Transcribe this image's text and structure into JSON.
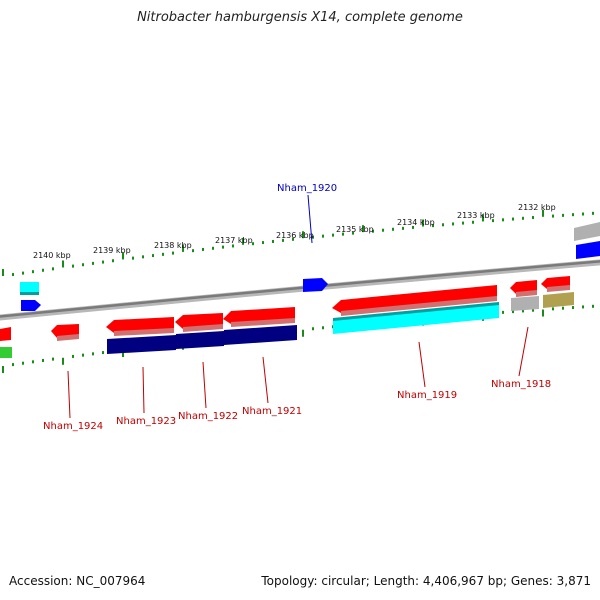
{
  "title": "Nitrobacter hamburgensis X14, complete genome",
  "accession_text": "Accession: NC_007964",
  "stats_text": "Topology: circular; Length: 4,406,967 bp; Genes: 3,871",
  "kbp_labels": [
    "2140 kbp",
    "2139 kbp",
    "2138 kbp",
    "2137 kbp",
    "2136 kbp",
    "2135 kbp",
    "2134 kbp",
    "2133 kbp",
    "2132 kbp"
  ],
  "gene_labels": [
    {
      "name": "Nham_1920",
      "color": "#0000c0"
    },
    {
      "name": "Nham_1924",
      "color": "#c00000"
    },
    {
      "name": "Nham_1923",
      "color": "#c00000"
    },
    {
      "name": "Nham_1922",
      "color": "#c00000"
    },
    {
      "name": "Nham_1921",
      "color": "#c00000"
    },
    {
      "name": "Nham_1919",
      "color": "#c00000"
    },
    {
      "name": "Nham_1918",
      "color": "#c00000"
    }
  ],
  "colors": {
    "backbone": "#8a8a8a",
    "tick_green": "#1a8a1a",
    "gene_red": "#ff0000",
    "gene_blue": "#0000ff",
    "gene_navy": "#000080",
    "gene_cyan": "#00ffff",
    "gene_green": "#33cc33",
    "gene_gray": "#b0b0b0",
    "gene_olive": "#b0a050"
  }
}
